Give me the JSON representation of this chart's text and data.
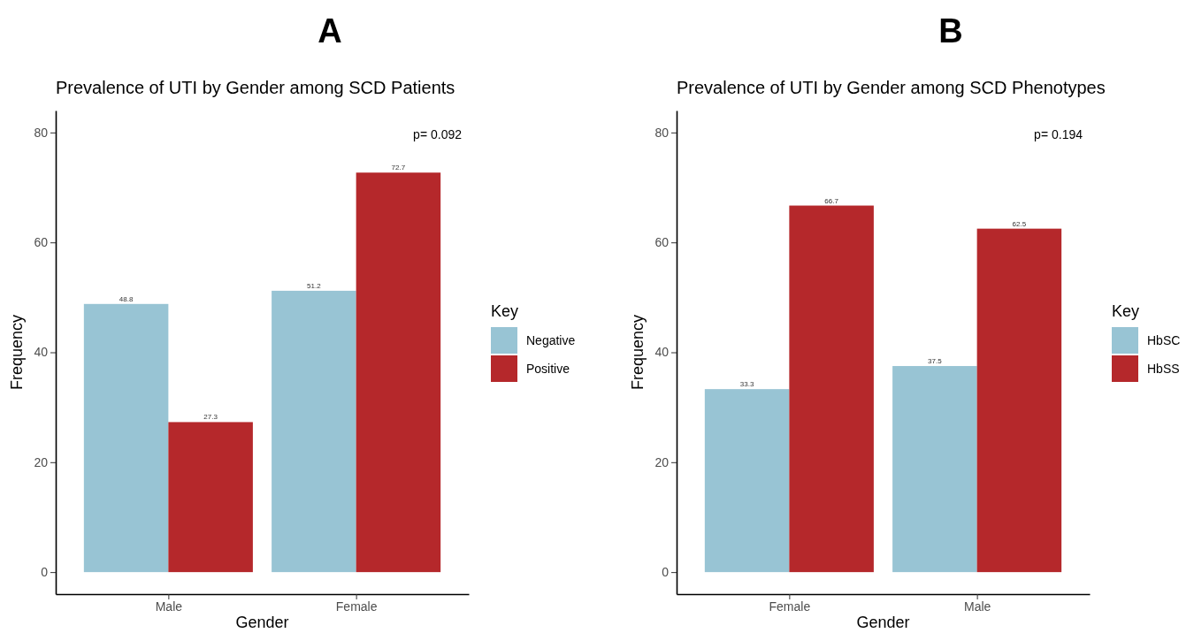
{
  "chart_data": [
    {
      "type": "bar",
      "title": "A",
      "subtitle": "Prevalence of UTI by Gender among SCD Patients",
      "xlabel": "Gender",
      "ylabel": "Frequency",
      "legend_title": "Key",
      "categories": [
        "Male",
        "Female"
      ],
      "series": [
        {
          "name": "Negative",
          "color": "#98c4d4",
          "values": [
            48.8,
            51.2
          ]
        },
        {
          "name": "Positive",
          "color": "#b5282b",
          "values": [
            27.3,
            72.7
          ]
        }
      ],
      "ylim": [
        -4,
        84
      ],
      "yticks": [
        0,
        20,
        40,
        60,
        80
      ],
      "grid": false,
      "legend": "right",
      "data_labels": true,
      "annotations": [
        "p= 0.092"
      ]
    },
    {
      "type": "bar",
      "title": "B",
      "subtitle": "Prevalence of UTI by Gender among SCD Phenotypes",
      "xlabel": "Gender",
      "ylabel": "Frequency",
      "legend_title": "Key",
      "categories": [
        "Female",
        "Male"
      ],
      "series": [
        {
          "name": "HbSC",
          "color": "#98c4d4",
          "values": [
            33.3,
            37.5
          ]
        },
        {
          "name": "HbSS",
          "color": "#b5282b",
          "values": [
            66.7,
            62.5
          ]
        }
      ],
      "ylim": [
        -4,
        84
      ],
      "yticks": [
        0,
        20,
        40,
        60,
        80
      ],
      "grid": false,
      "legend": "right",
      "data_labels": true,
      "annotations": [
        "p= 0.194"
      ]
    }
  ]
}
